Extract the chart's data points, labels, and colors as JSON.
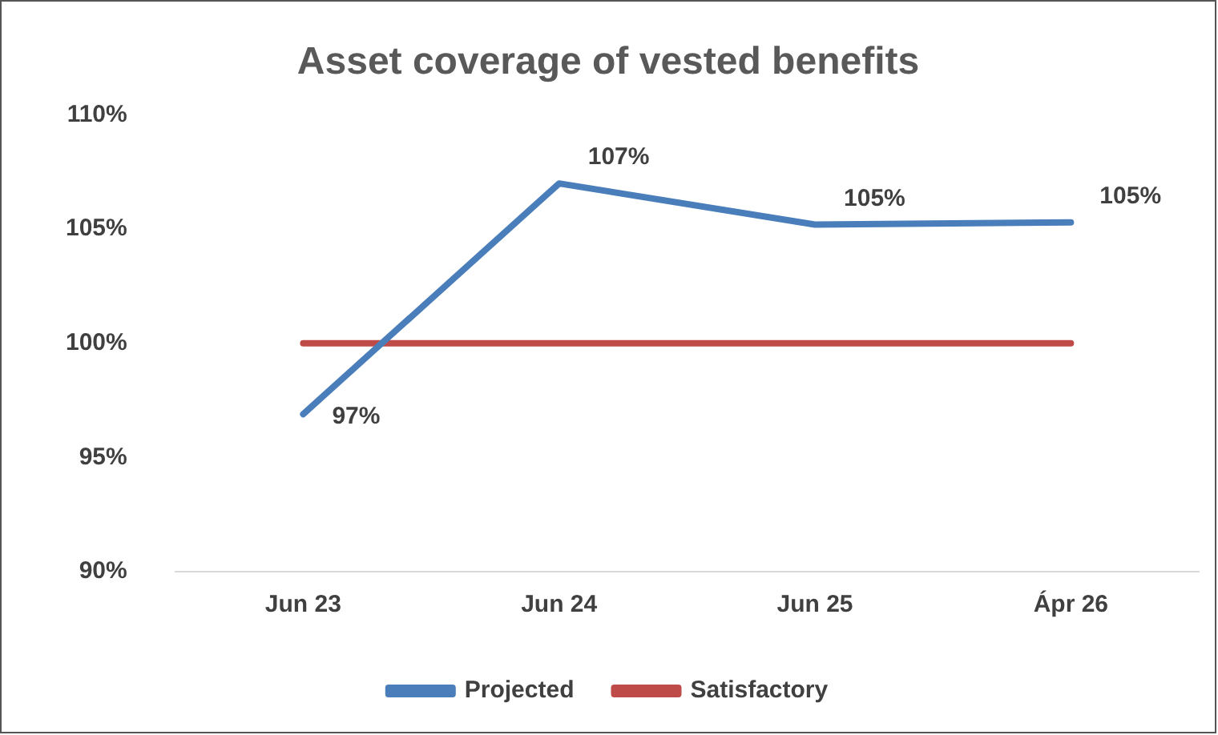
{
  "chart_data": {
    "type": "line",
    "title": "Asset coverage of vested benefits",
    "categories": [
      "Jun 23",
      "Jun 24",
      "Jun 25",
      "Ápr 26"
    ],
    "series": [
      {
        "name": "Projected",
        "color": "#4a7ebb",
        "values": [
          96.9,
          107,
          105.2,
          105.3
        ],
        "value_labels": [
          "97%",
          "107%",
          "105%",
          "105%"
        ]
      },
      {
        "name": "Satisfactory",
        "color": "#be4b48",
        "values": [
          100,
          100,
          100,
          100
        ]
      }
    ],
    "ylim": [
      90,
      110
    ],
    "yticks": [
      {
        "value": 90,
        "label": "90%"
      },
      {
        "value": 95,
        "label": "95%"
      },
      {
        "value": 100,
        "label": "100%"
      },
      {
        "value": 105,
        "label": "105%"
      },
      {
        "value": 110,
        "label": "110%"
      }
    ],
    "grid": false,
    "legend": "bottom",
    "marker": "none",
    "line_style": "solid"
  }
}
